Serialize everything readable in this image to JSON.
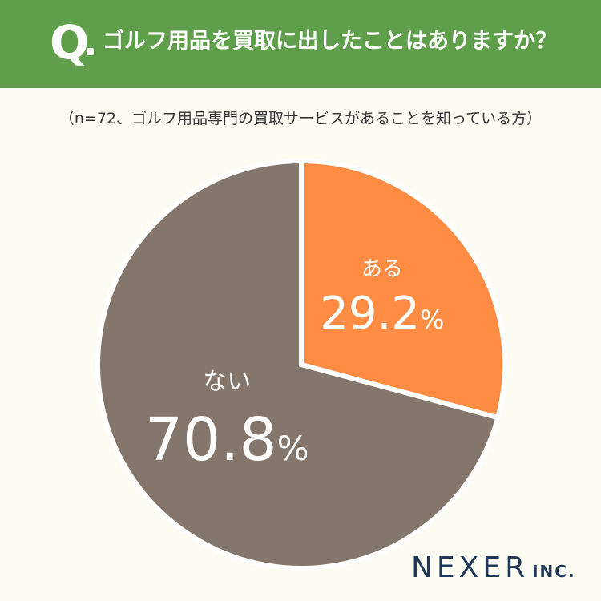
{
  "header": {
    "q_mark": "Q",
    "question": "ゴルフ用品を買取に出したことはありますか？"
  },
  "subtitle": "（n=72、ゴルフ用品専門の買取サービスがあることを知っている方）",
  "chart_data": {
    "type": "pie",
    "categories": [
      "ある",
      "ない"
    ],
    "values": [
      29.2,
      70.8
    ],
    "unit": "%",
    "colors": [
      "#ff8c42",
      "#85766b"
    ],
    "start": "12 o'clock",
    "direction": "clockwise"
  },
  "logo": {
    "main": "NEXER",
    "sub": "INC."
  }
}
